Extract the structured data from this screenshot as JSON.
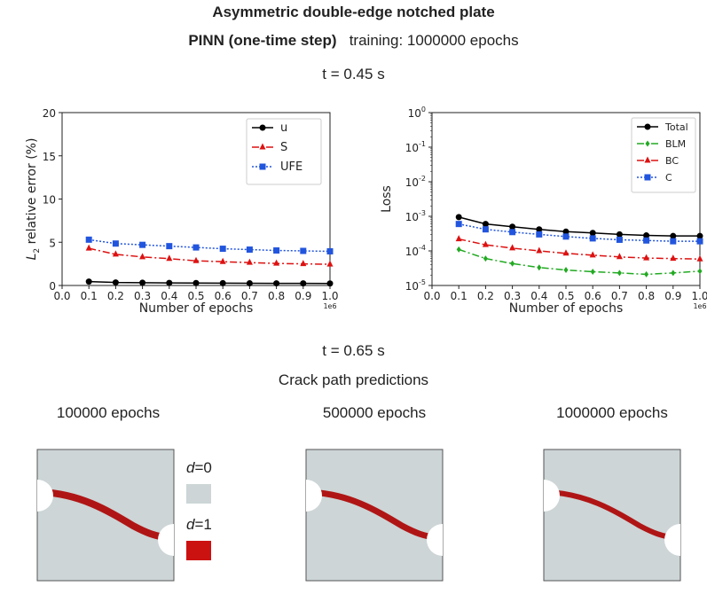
{
  "header": {
    "title": "Asymmetric double-edge notched plate",
    "subtitle_bold": "PINN (one-time step)",
    "subtitle_rest": "training: 1000000 epochs",
    "time_1": "t = 0.45 s",
    "time_2": "t = 0.65 s",
    "crack_title": "Crack path predictions"
  },
  "crack_panels": {
    "labels": [
      "100000 epochs",
      "500000 epochs",
      "1000000 epochs"
    ]
  },
  "legend_phase": {
    "d0": "d=0",
    "d1": "d=1",
    "d_letter": "d",
    "d0_value": "=0",
    "d1_value": "=1",
    "color_d0": "#cdd5d6",
    "color_d1": "#cc1111"
  },
  "chart_data": [
    {
      "type": "line",
      "title": "",
      "xlabel": "Number of epochs",
      "ylabel": "L2 relative error (%)",
      "ylabel_main": "L",
      "ylabel_sub": "2",
      "ylabel_rest": " relative error (%)",
      "x_multiplier": "1e6",
      "xlim": [
        0.0,
        1.0
      ],
      "ylim": [
        0,
        20
      ],
      "xticks": [
        "0.0",
        "0.1",
        "0.2",
        "0.3",
        "0.4",
        "0.5",
        "0.6",
        "0.7",
        "0.8",
        "0.9",
        "1.0"
      ],
      "yticks": [
        "0",
        "5",
        "10",
        "15",
        "20"
      ],
      "x": [
        0.1,
        0.2,
        0.3,
        0.4,
        0.5,
        0.6,
        0.7,
        0.8,
        0.9,
        1.0
      ],
      "legend_position": "top-right",
      "series": [
        {
          "name": "u",
          "color": "#000000",
          "marker": "circle",
          "dash": "",
          "values": [
            0.45,
            0.35,
            0.32,
            0.3,
            0.28,
            0.27,
            0.26,
            0.25,
            0.24,
            0.23
          ]
        },
        {
          "name": "S",
          "color": "#dd1111",
          "marker": "triangle",
          "dash": "8,3,2,3",
          "values": [
            4.3,
            3.6,
            3.3,
            3.1,
            2.85,
            2.75,
            2.65,
            2.55,
            2.5,
            2.45
          ]
        },
        {
          "name": "UFE",
          "color": "#2255dd",
          "marker": "square",
          "dash": "2,2",
          "values": [
            5.3,
            4.85,
            4.7,
            4.55,
            4.4,
            4.25,
            4.15,
            4.05,
            4.0,
            3.95
          ]
        }
      ]
    },
    {
      "type": "line",
      "title": "",
      "xlabel": "Number of epochs",
      "ylabel": "Loss",
      "yscale": "log",
      "x_multiplier": "1e6",
      "xlim": [
        0.0,
        1.0
      ],
      "ylim_exp": [
        -5,
        0
      ],
      "xticks": [
        "0.0",
        "0.1",
        "0.2",
        "0.3",
        "0.4",
        "0.5",
        "0.6",
        "0.7",
        "0.8",
        "0.9",
        "1.0"
      ],
      "yticks": [
        "10^0",
        "10^-1",
        "10^-2",
        "10^-3",
        "10^-4",
        "10^-5"
      ],
      "ytick_base": "10",
      "ytick_exps": [
        "0",
        "-1",
        "-2",
        "-3",
        "-4",
        "-5"
      ],
      "x": [
        0.1,
        0.2,
        0.3,
        0.4,
        0.5,
        0.6,
        0.7,
        0.8,
        0.9,
        1.0
      ],
      "legend_position": "top-right",
      "series": [
        {
          "name": "Total",
          "color": "#000000",
          "marker": "circle",
          "dash": "",
          "values": [
            0.00095,
            0.0006,
            0.0005,
            0.00042,
            0.00036,
            0.00033,
            0.0003,
            0.00028,
            0.00027,
            0.00027
          ]
        },
        {
          "name": "BLM",
          "color": "#22aa22",
          "marker": "diamond",
          "dash": "8,3,2,3",
          "values": [
            0.00011,
            6e-05,
            4.3e-05,
            3.3e-05,
            2.8e-05,
            2.5e-05,
            2.3e-05,
            2.1e-05,
            2.3e-05,
            2.6e-05
          ]
        },
        {
          "name": "BC",
          "color": "#dd1111",
          "marker": "triangle",
          "dash": "8,3,2,3",
          "values": [
            0.00022,
            0.00015,
            0.00012,
            0.0001,
            8.5e-05,
            7.5e-05,
            6.7e-05,
            6.2e-05,
            6e-05,
            5.8e-05
          ]
        },
        {
          "name": "C",
          "color": "#2255dd",
          "marker": "square",
          "dash": "2,2",
          "values": [
            0.0006,
            0.00042,
            0.00035,
            0.0003,
            0.00026,
            0.00023,
            0.00021,
            0.0002,
            0.00019,
            0.00019
          ]
        }
      ]
    }
  ]
}
